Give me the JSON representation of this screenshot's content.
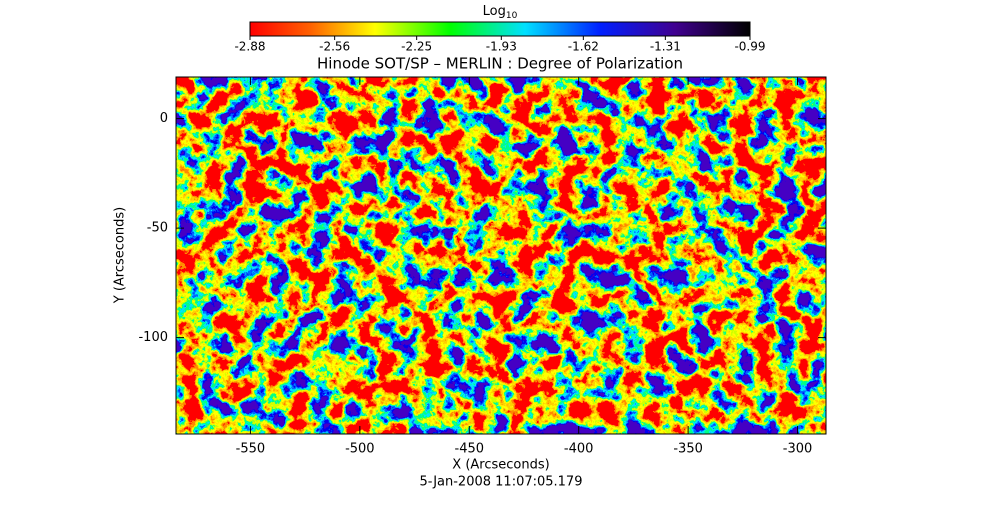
{
  "chart_data": {
    "type": "heatmap",
    "title": "Hinode SOT/SP – MERLIN : Degree of Polarization",
    "xlabel": "X (Arcseconds)",
    "ylabel": "Y (Arcseconds)",
    "date": "5-Jan-2008 11:07:05.179",
    "xlim": [
      -584,
      -287
    ],
    "xticks": [
      -550,
      -500,
      -450,
      -400,
      -350,
      -300
    ],
    "ylim": [
      -144,
      19
    ],
    "yticks": [
      -100,
      -50,
      0
    ],
    "colorbar": {
      "label": "Log",
      "label_subscript": "10",
      "clim": [
        -2.88,
        -0.99
      ],
      "ticks": [
        -2.88,
        -2.56,
        -2.25,
        -1.93,
        -1.62,
        -1.31,
        -0.99
      ]
    }
  }
}
